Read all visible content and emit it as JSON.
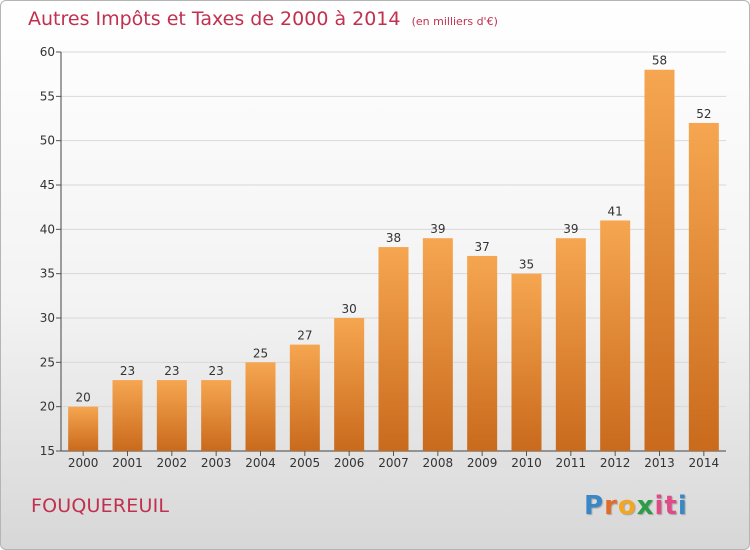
{
  "title": "Autres Impôts et Taxes de 2000 à 2014",
  "unit_note": "(en milliers d'€)",
  "place_name": "FOUQUEREUIL",
  "brand": {
    "letters": [
      "P",
      "r",
      "o",
      "x",
      "i",
      "t",
      "i"
    ],
    "colors": [
      "#3a87c6",
      "#e26b2b",
      "#f2a724",
      "#2b9c48",
      "#e04a86",
      "#e04a86",
      "#3a87c6"
    ]
  },
  "colors": {
    "bar_light": "#f6a650",
    "bar_dark": "#c96a1c",
    "title": "#c2304f",
    "grid": "#d9d9d9"
  },
  "chart_data": {
    "type": "bar",
    "categories": [
      "2000",
      "2001",
      "2002",
      "2003",
      "2004",
      "2005",
      "2006",
      "2007",
      "2008",
      "2009",
      "2010",
      "2011",
      "2012",
      "2013",
      "2014"
    ],
    "values": [
      20,
      23,
      23,
      23,
      25,
      27,
      30,
      38,
      39,
      37,
      35,
      39,
      41,
      58,
      52
    ],
    "data_labels": [
      "20",
      "23",
      "23",
      "23",
      "25",
      "27",
      "30",
      "38",
      "39",
      "37",
      "35",
      "39",
      "41",
      "58",
      "52"
    ],
    "yticks": [
      15,
      20,
      25,
      30,
      35,
      40,
      45,
      50,
      55,
      60
    ],
    "ylim": [
      15,
      60
    ],
    "grid": true
  }
}
